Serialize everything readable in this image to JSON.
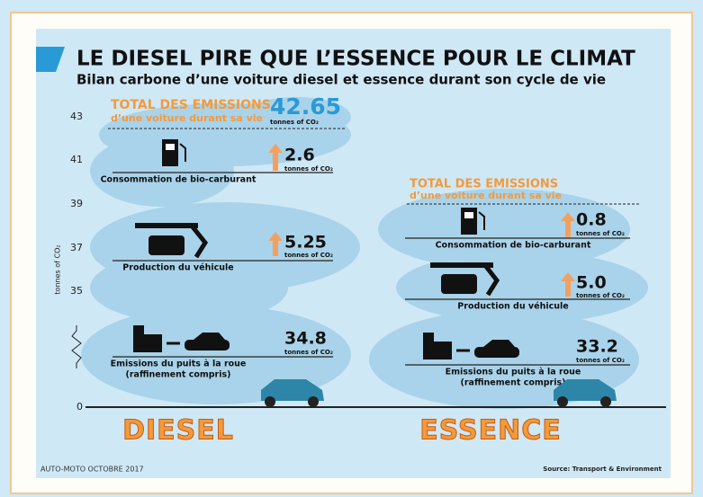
{
  "header": {
    "title": "LE DIESEL PIRE QUE L’ESSENCE POUR LE CLIMAT",
    "subtitle": "Bilan carbone d’une voiture diesel et essence durant son cycle de vie"
  },
  "axis": {
    "label": "tonnes of CO₂",
    "ticks": [
      "43",
      "41",
      "39",
      "37",
      "35",
      "0"
    ]
  },
  "columns": [
    {
      "name": "DIESEL",
      "total_label": "TOTAL DES EMISSIONS",
      "total_sub": "d’une voiture durant sa vie",
      "total": "42.65",
      "total_unit": "tonnes of CO₂",
      "items": [
        {
          "label": [
            "Consommation de bio-carburant"
          ],
          "value": "2.6",
          "unit": "tonnes of CO₂"
        },
        {
          "label": [
            "Production du véhicule"
          ],
          "value": "5.25",
          "unit": "tonnes of CO₂"
        },
        {
          "label": [
            "Emissions du puits à la roue",
            "(raffinement compris)"
          ],
          "value": "34.8",
          "unit": "tonnes of CO₂"
        }
      ]
    },
    {
      "name": "ESSENCE",
      "total_label": "TOTAL DES EMISSIONS",
      "total_sub": "d’une voiture durant sa vie",
      "items": [
        {
          "label": [
            "Consommation de bio-carburant"
          ],
          "value": "0.8",
          "unit": "tonnes of CO₂"
        },
        {
          "label": [
            "Production du véhicule"
          ],
          "value": "5.0",
          "unit": "tonnes of CO₂"
        },
        {
          "label": [
            "Emissions du puits à la roue",
            "(raffinement compris)"
          ],
          "value": "33.2",
          "unit": "tonnes of CO₂"
        }
      ]
    }
  ],
  "footer": {
    "credit": "AUTO-MOTO OCTOBRE 2017",
    "source": "Source: Transport & Environment"
  }
}
